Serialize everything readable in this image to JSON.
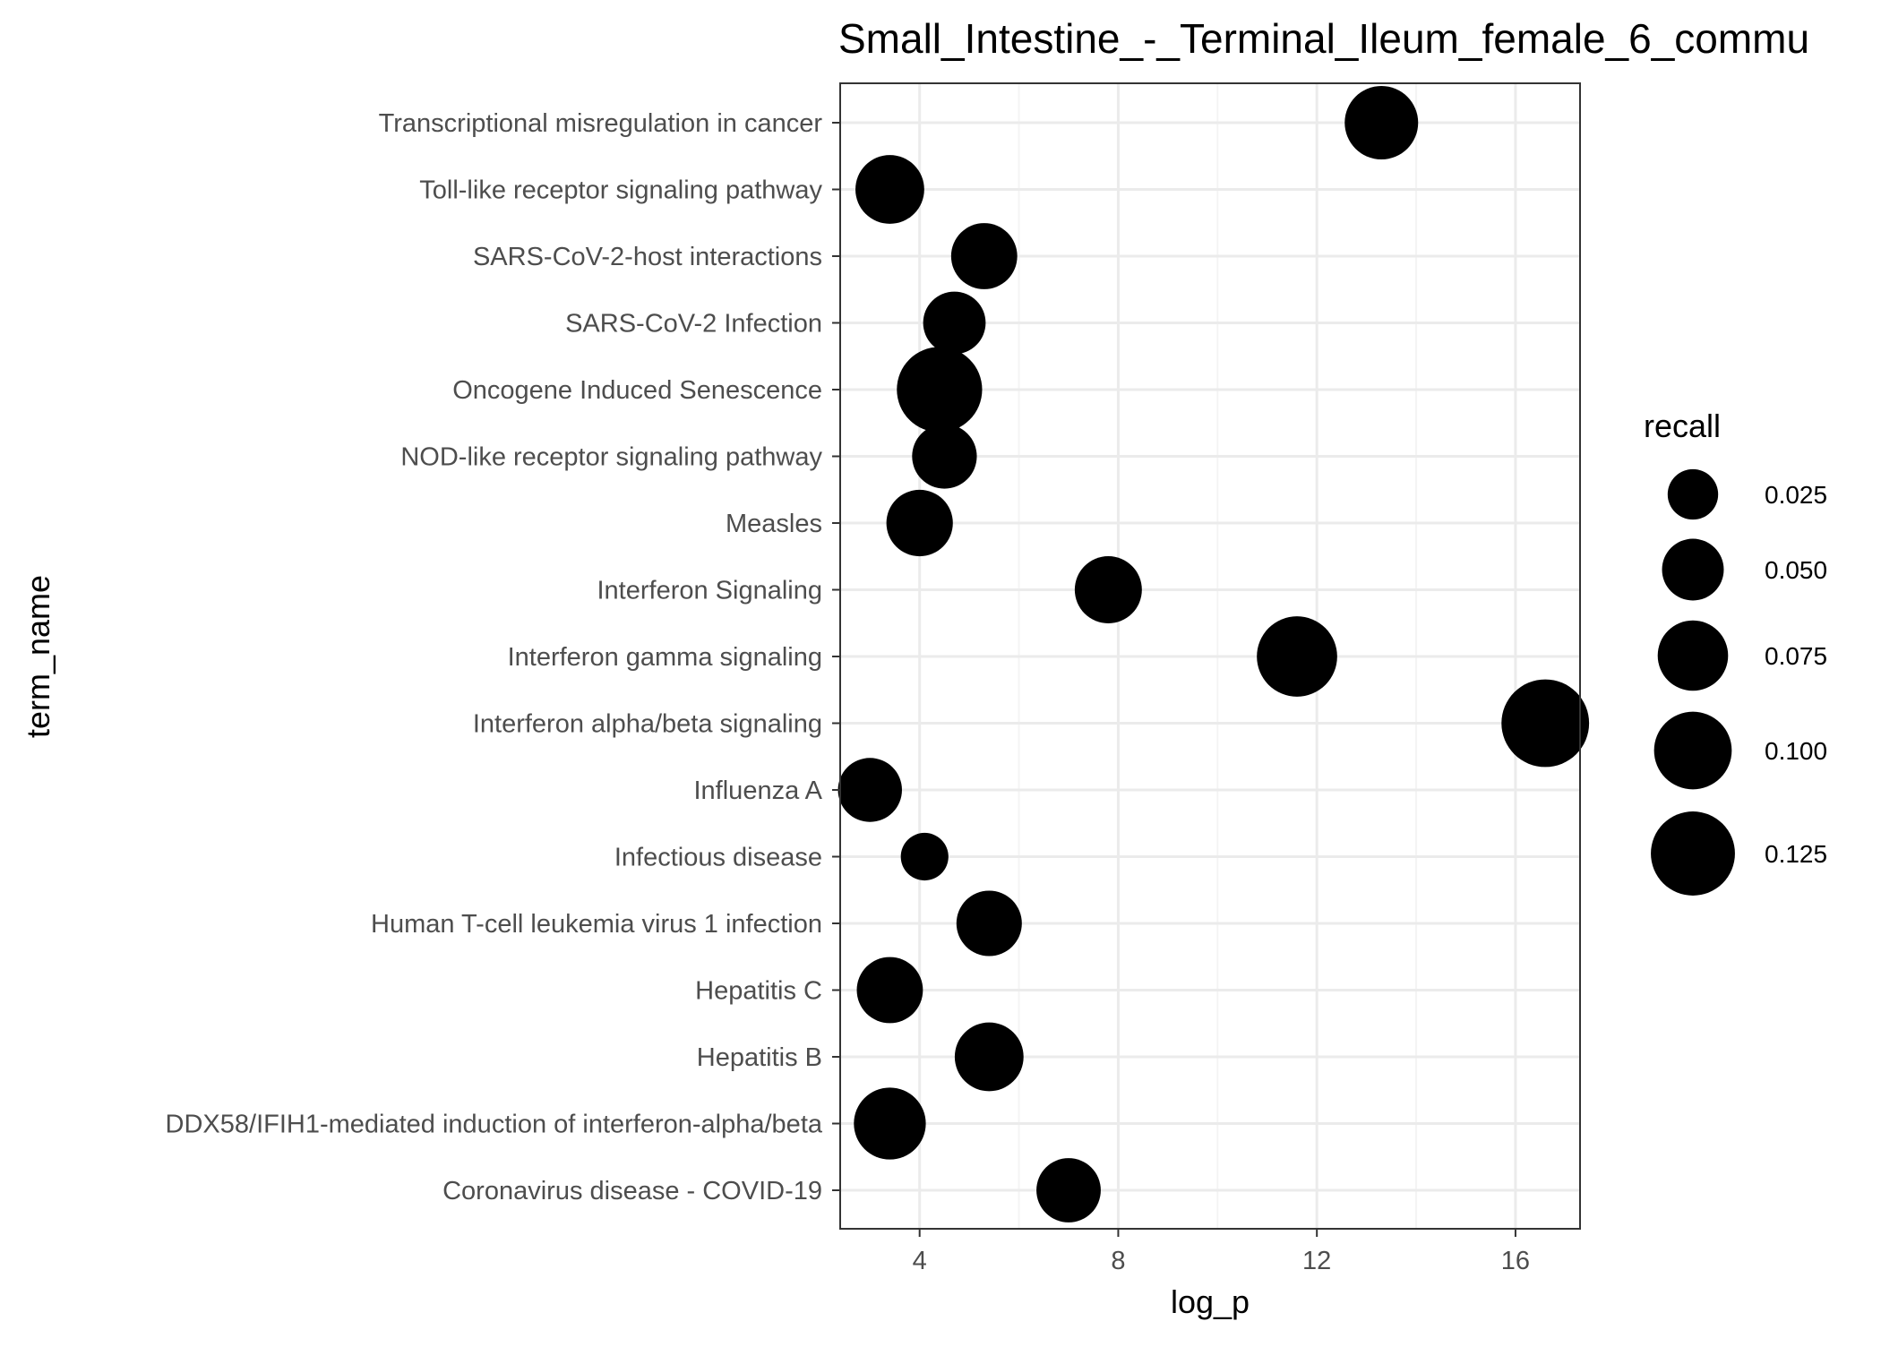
{
  "chart_data": {
    "type": "scatter",
    "title": "Small_Intestine_-_Terminal_Ileum_female_6_commu",
    "xlabel": "log_p",
    "ylabel": "term_name",
    "xlim": [
      2.4,
      17.3
    ],
    "x_ticks": [
      4,
      8,
      12,
      16
    ],
    "x_tick_labels": [
      "4",
      "8",
      "12",
      "16"
    ],
    "grid": true,
    "categories": [
      "Transcriptional misregulation in cancer",
      "Toll-like receptor signaling pathway",
      "SARS-CoV-2-host interactions",
      "SARS-CoV-2 Infection",
      "Oncogene Induced Senescence",
      "NOD-like receptor signaling pathway",
      "Measles",
      "Interferon Signaling",
      "Interferon gamma signaling",
      "Interferon alpha/beta signaling",
      "Influenza A",
      "Infectious disease",
      "Human T-cell leukemia virus 1 infection",
      "Hepatitis C",
      "Hepatitis B",
      "DDX58/IFIH1-mediated induction of interferon-alpha/beta",
      "Coronavirus disease - COVID-19"
    ],
    "points": [
      {
        "term_name": "Transcriptional misregulation in cancer",
        "log_p": 13.3,
        "recall": 0.085
      },
      {
        "term_name": "Toll-like receptor signaling pathway",
        "log_p": 3.4,
        "recall": 0.07
      },
      {
        "term_name": "SARS-CoV-2-host interactions",
        "log_p": 5.3,
        "recall": 0.062
      },
      {
        "term_name": "SARS-CoV-2 Infection",
        "log_p": 4.7,
        "recall": 0.052
      },
      {
        "term_name": "Oncogene Induced Senescence",
        "log_p": 4.4,
        "recall": 0.13
      },
      {
        "term_name": "NOD-like receptor signaling pathway",
        "log_p": 4.5,
        "recall": 0.058
      },
      {
        "term_name": "Measles",
        "log_p": 4.0,
        "recall": 0.063
      },
      {
        "term_name": "Interferon Signaling",
        "log_p": 7.8,
        "recall": 0.065
      },
      {
        "term_name": "Interferon gamma signaling",
        "log_p": 11.6,
        "recall": 0.11
      },
      {
        "term_name": "Interferon alpha/beta signaling",
        "log_p": 16.6,
        "recall": 0.14
      },
      {
        "term_name": "Influenza A",
        "log_p": 3.0,
        "recall": 0.056
      },
      {
        "term_name": "Infectious disease",
        "log_p": 4.1,
        "recall": 0.02
      },
      {
        "term_name": "Human T-cell leukemia virus 1 infection",
        "log_p": 5.4,
        "recall": 0.06
      },
      {
        "term_name": "Hepatitis C",
        "log_p": 3.4,
        "recall": 0.062
      },
      {
        "term_name": "Hepatitis B",
        "log_p": 5.4,
        "recall": 0.07
      },
      {
        "term_name": "DDX58/IFIH1-mediated induction of interferon-alpha/beta",
        "log_p": 3.4,
        "recall": 0.08
      },
      {
        "term_name": "Coronavirus disease - COVID-19",
        "log_p": 7.0,
        "recall": 0.057
      }
    ],
    "legend": {
      "title": "recall",
      "placement": "right",
      "entries": [
        {
          "label": "0.025",
          "value": 0.025
        },
        {
          "label": "0.050",
          "value": 0.05
        },
        {
          "label": "0.075",
          "value": 0.075
        },
        {
          "label": "0.100",
          "value": 0.1
        },
        {
          "label": "0.125",
          "value": 0.125
        }
      ]
    },
    "colors": {
      "point": "#000000",
      "panel_border": "#333333",
      "grid_major": "#ebebeb",
      "grid_minor": "#f4f4f4",
      "tick_text": "#4d4d4d"
    }
  }
}
